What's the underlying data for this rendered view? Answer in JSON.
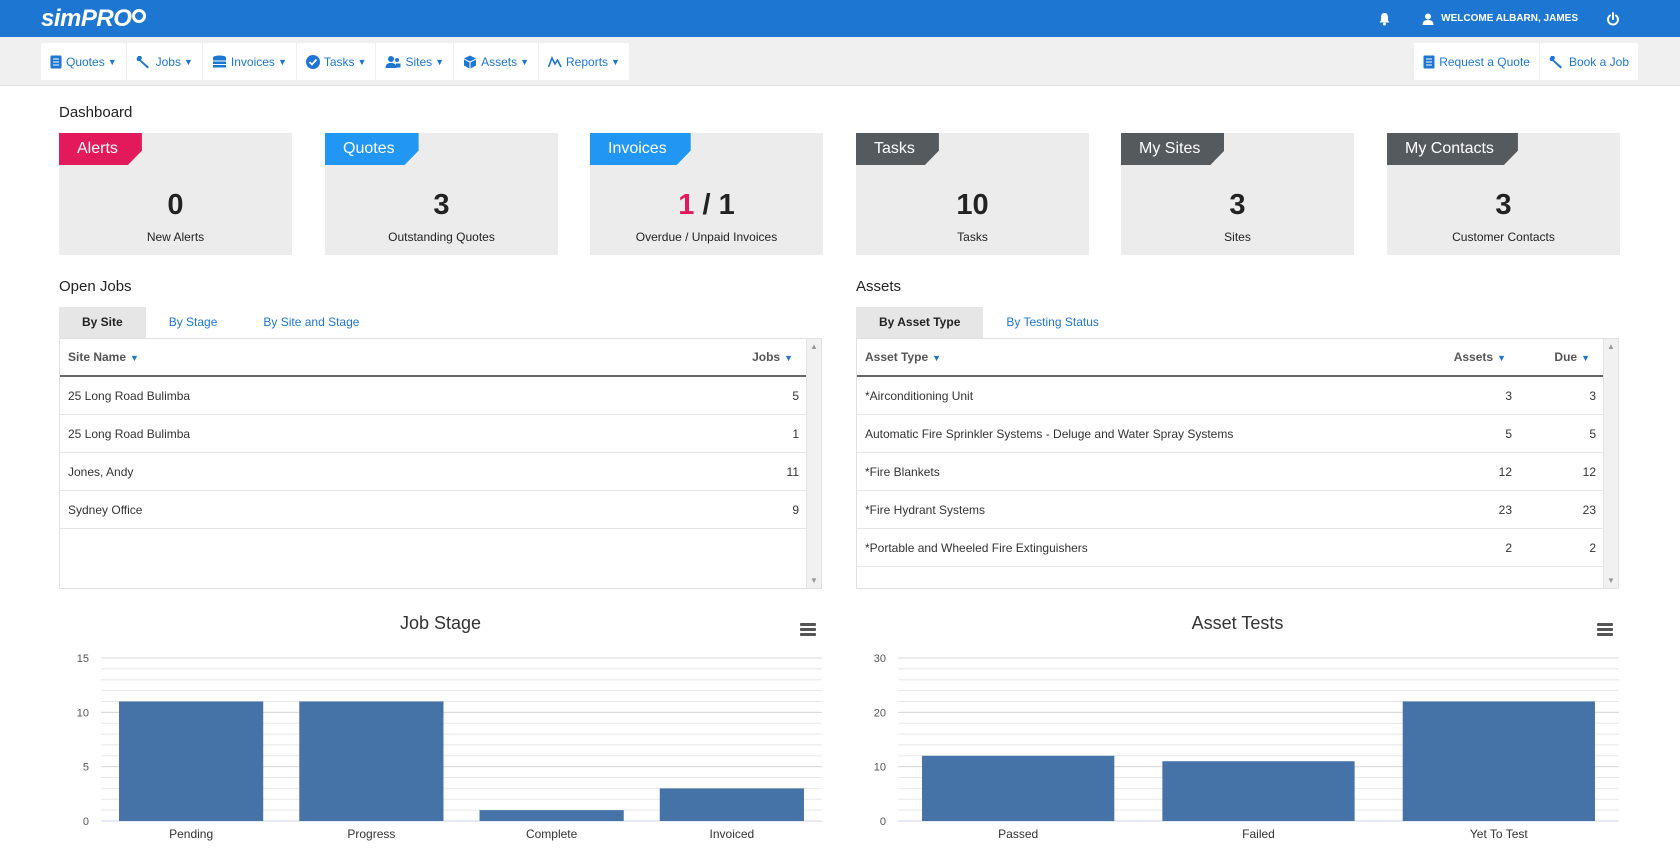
{
  "app": {
    "logo": "simPRO"
  },
  "topbar": {
    "bell_icon": "bell-icon",
    "welcome": "WELCOME ALBARN, JAMES",
    "power_icon": "power-icon"
  },
  "nav": {
    "left": [
      {
        "label": "Quotes",
        "icon": "document-icon"
      },
      {
        "label": "Jobs",
        "icon": "wrench-icon"
      },
      {
        "label": "Invoices",
        "icon": "coins-icon"
      },
      {
        "label": "Tasks",
        "icon": "check-circle-icon"
      },
      {
        "label": "Sites",
        "icon": "users-icon"
      },
      {
        "label": "Assets",
        "icon": "cube-icon"
      },
      {
        "label": "Reports",
        "icon": "chart-line-icon"
      }
    ],
    "right": [
      {
        "label": "Request a Quote",
        "icon": "document-icon"
      },
      {
        "label": "Book a Job",
        "icon": "wrench-icon"
      }
    ]
  },
  "dashboard": {
    "title": "Dashboard",
    "cards": [
      {
        "tag": "Alerts",
        "value": "0",
        "label": "New Alerts",
        "color": "#e2195a"
      },
      {
        "tag": "Quotes",
        "value": "3",
        "label": "Outstanding Quotes",
        "color": "#2196f3"
      },
      {
        "tag": "Invoices",
        "value_overdue": "1",
        "value_sep": " / ",
        "value_unpaid": "1",
        "label": "Overdue / Unpaid Invoices",
        "color": "#2196f3"
      },
      {
        "tag": "Tasks",
        "value": "10",
        "label": "Tasks",
        "color": "#555a5f"
      },
      {
        "tag": "My Sites",
        "value": "3",
        "label": "Sites",
        "color": "#555a5f"
      },
      {
        "tag": "My Contacts",
        "value": "3",
        "label": "Customer Contacts",
        "color": "#555a5f"
      }
    ]
  },
  "open_jobs": {
    "title": "Open Jobs",
    "tabs": [
      "By Site",
      "By Stage",
      "By Site and Stage"
    ],
    "columns": [
      "Site Name",
      "Jobs"
    ],
    "rows": [
      [
        "25 Long Road Bulimba",
        "5"
      ],
      [
        "25 Long Road Bulimba",
        "1"
      ],
      [
        "Jones, Andy",
        "11"
      ],
      [
        "Sydney Office",
        "9"
      ]
    ]
  },
  "assets": {
    "title": "Assets",
    "tabs": [
      "By Asset Type",
      "By Testing Status"
    ],
    "columns": [
      "Asset Type",
      "Assets",
      "Due"
    ],
    "rows": [
      [
        "*Airconditioning Unit",
        "3",
        "3"
      ],
      [
        "Automatic Fire Sprinkler Systems - Deluge and Water Spray Systems",
        "5",
        "5"
      ],
      [
        "*Fire Blankets",
        "12",
        "12"
      ],
      [
        "*Fire Hydrant Systems",
        "23",
        "23"
      ],
      [
        "*Portable and Wheeled Fire Extinguishers",
        "2",
        "2"
      ]
    ]
  },
  "chart_data": [
    {
      "type": "bar",
      "title": "Job Stage",
      "categories": [
        "Pending",
        "Progress",
        "Complete",
        "Invoiced"
      ],
      "values": [
        11,
        11,
        1,
        3
      ],
      "ylim": [
        0,
        15
      ],
      "yticks": [
        0,
        5,
        10,
        15
      ],
      "color": "#4572a7",
      "grid": true
    },
    {
      "type": "bar",
      "title": "Asset Tests",
      "categories": [
        "Passed",
        "Failed",
        "Yet To Test"
      ],
      "values": [
        12,
        11,
        22
      ],
      "ylim": [
        0,
        30
      ],
      "yticks": [
        0,
        10,
        20,
        30
      ],
      "color": "#4572a7",
      "grid": true
    }
  ]
}
